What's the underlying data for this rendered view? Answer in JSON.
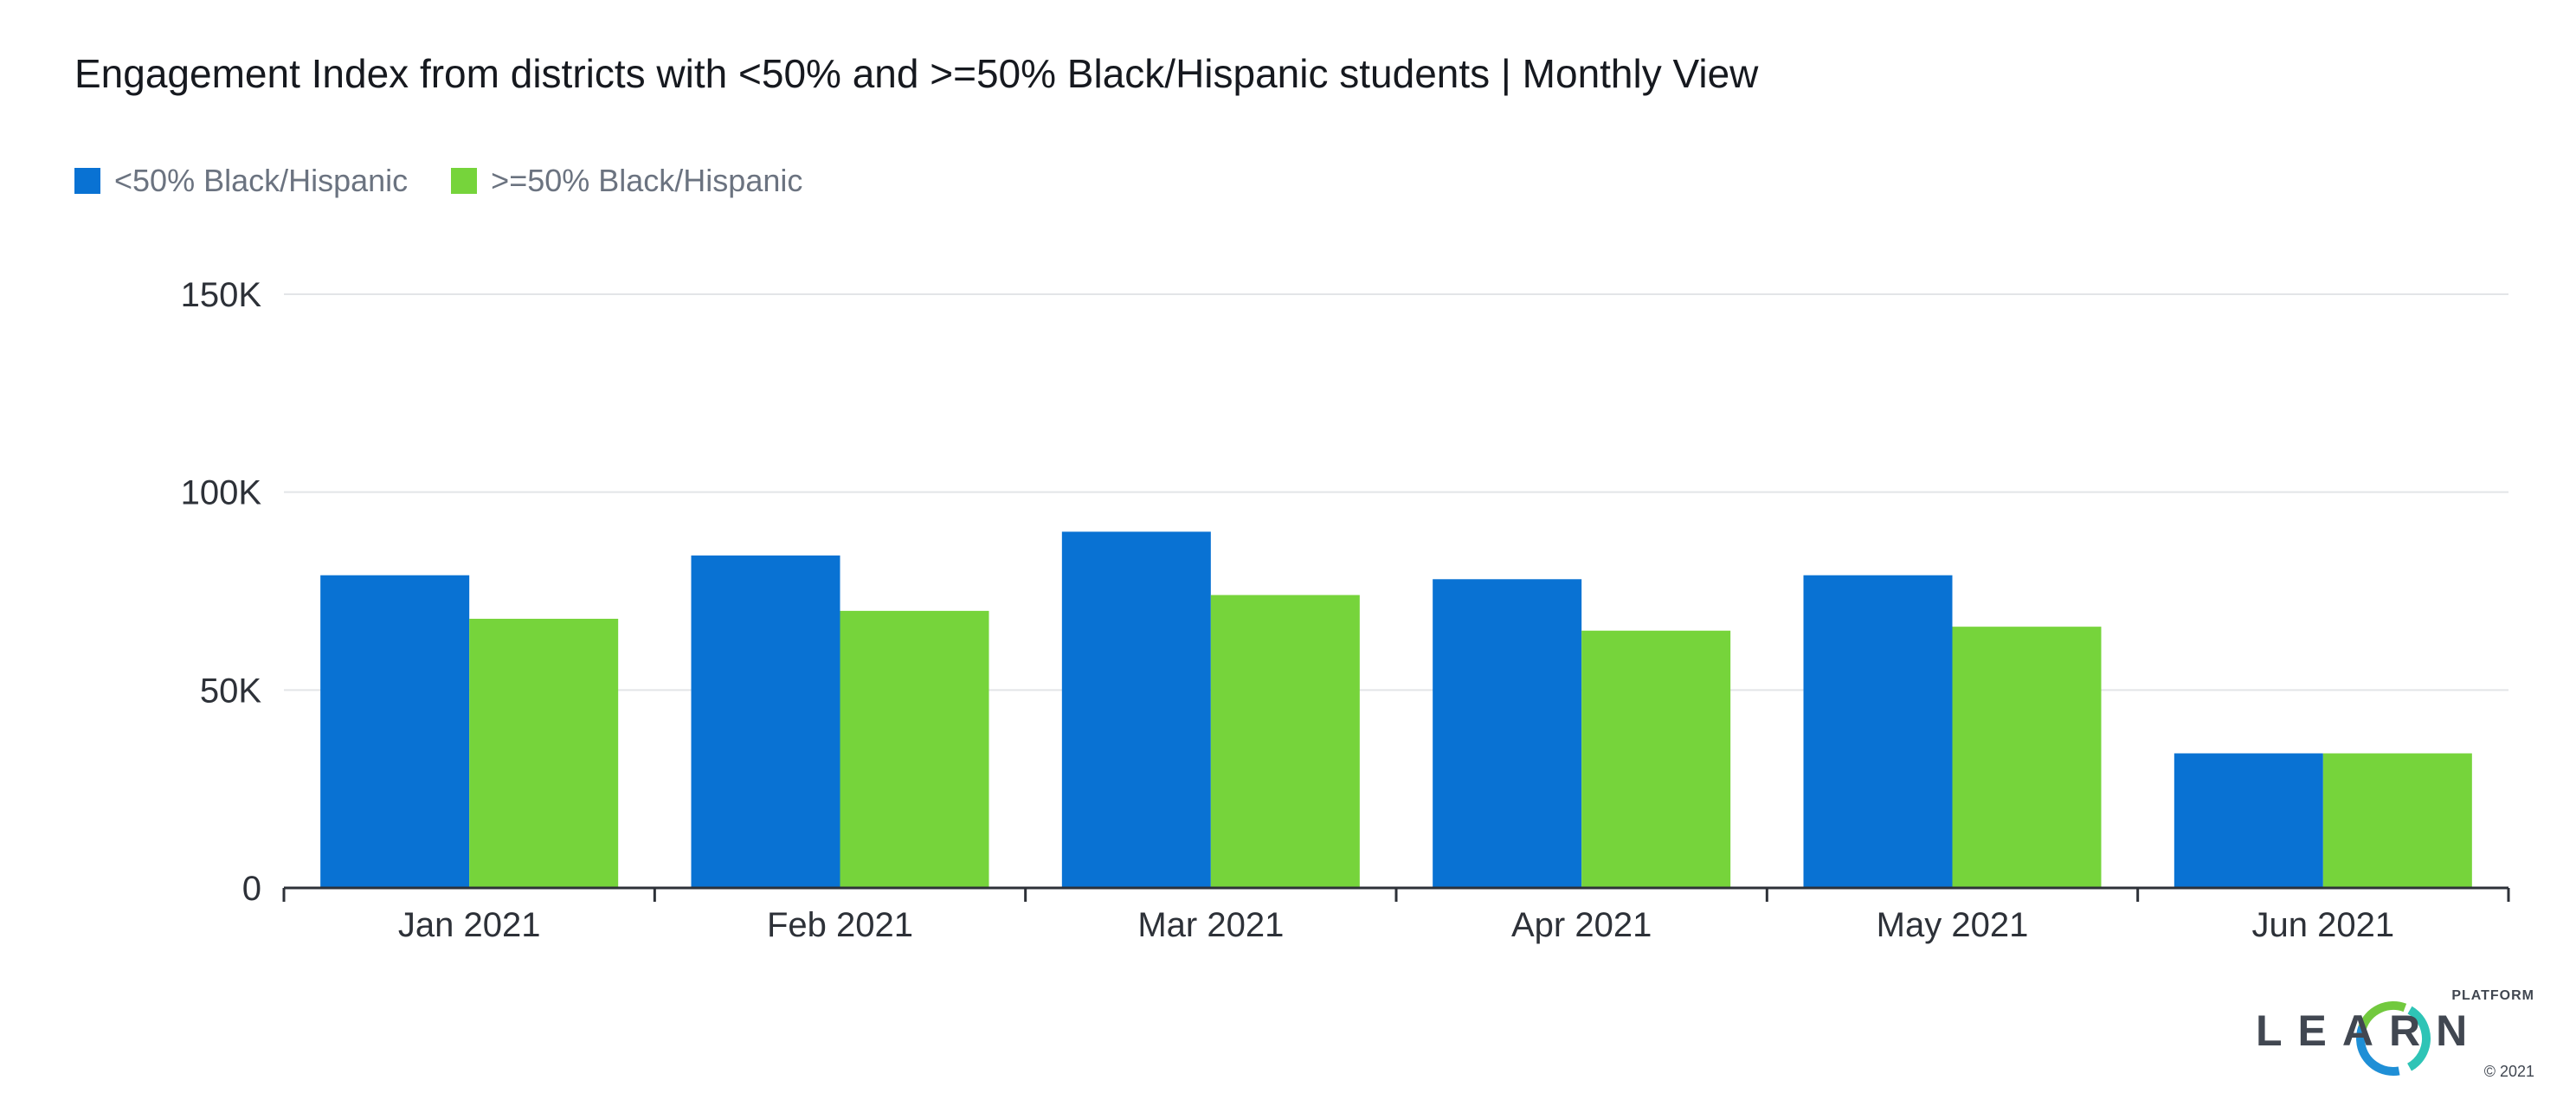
{
  "chart_data": {
    "type": "bar",
    "title": "Engagement Index from districts with <50% and >=50% Black/Hispanic students | Monthly View",
    "categories": [
      "Jan 2021",
      "Feb 2021",
      "Mar 2021",
      "Apr 2021",
      "May 2021",
      "Jun 2021"
    ],
    "series": [
      {
        "name": "<50% Black/Hispanic",
        "color": "#0972d3",
        "values": [
          79000,
          84000,
          90000,
          78000,
          79000,
          34000
        ]
      },
      {
        "name": ">=50% Black/Hispanic",
        "color": "#76d43b",
        "values": [
          68000,
          70000,
          74000,
          65000,
          66000,
          34000
        ]
      }
    ],
    "y_ticks": [
      0,
      50000,
      100000,
      150000
    ],
    "y_tick_labels": [
      "0",
      "50K",
      "100K",
      "150K"
    ],
    "ylim": [
      0,
      150000
    ],
    "xlabel": "",
    "ylabel": "",
    "grid": true,
    "legend_position": "top-left"
  },
  "logo": {
    "text": "LEARN",
    "superscript": "PLATFORM",
    "copyright": "© 2021",
    "colors": [
      "#2ec4b6",
      "#1f8fd6",
      "#72c93e"
    ]
  }
}
